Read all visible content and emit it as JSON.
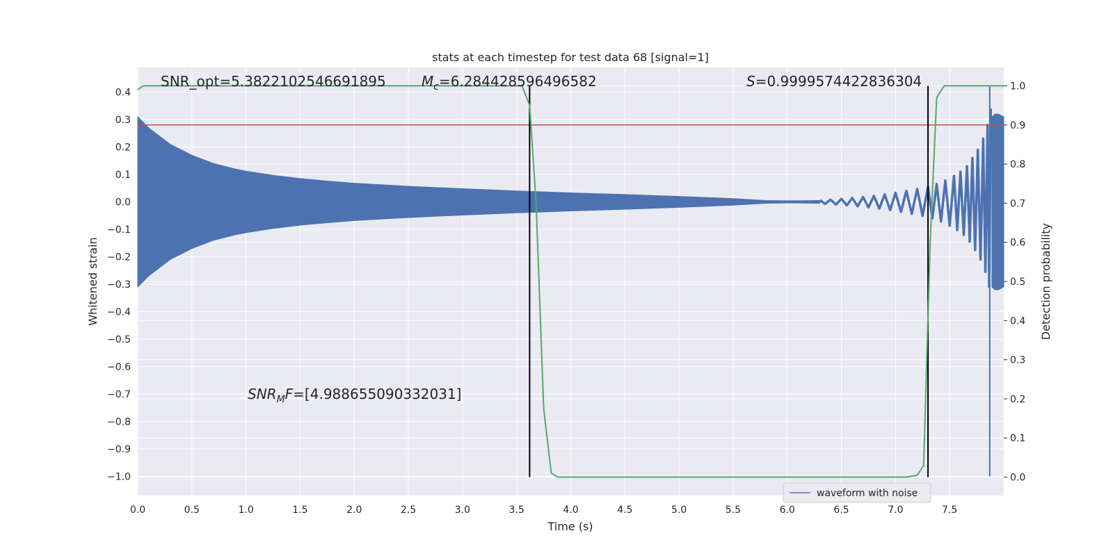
{
  "chart_data": {
    "type": "line",
    "title": "stats at each timestep for test data 68 [signal=1]",
    "xlabel": "Time (s)",
    "ylabel_left": "Whitened strain",
    "ylabel_right": "Detection probability",
    "xlim": [
      0,
      8.0
    ],
    "ylim_left": [
      -1.07,
      0.49
    ],
    "ylim_right": [
      -0.047,
      1.047
    ],
    "x_ticks": [
      "0.0",
      "0.5",
      "1.0",
      "1.5",
      "2.0",
      "2.5",
      "3.0",
      "3.5",
      "4.0",
      "4.5",
      "5.0",
      "5.5",
      "6.0",
      "6.5",
      "7.0",
      "7.5"
    ],
    "y_left_ticks": [
      "0.4",
      "0.3",
      "0.2",
      "0.1",
      "0.0",
      "−0.1",
      "−0.2",
      "−0.3",
      "−0.4",
      "−0.5",
      "−0.6",
      "−0.7",
      "−0.8",
      "−0.9",
      "−1.0"
    ],
    "y_right_ticks": [
      "1.0",
      "0.9",
      "0.8",
      "0.7",
      "0.6",
      "0.5",
      "0.4",
      "0.3",
      "0.2",
      "0.1",
      "0.0"
    ],
    "grid": true,
    "annotations": {
      "snr_opt": "SNR_opt=5.3822102546691895",
      "mc_symbol": "M",
      "mc_sub": "c",
      "mc_value": "=6.284428596496582",
      "s_symbol": "S",
      "s_value": "=0.9999574422836304",
      "snr_mf_symbol": "SNR",
      "snr_mf_sub": "M",
      "snr_mf_mid": "F",
      "snr_mf_value": "=[4.988655090332031]"
    },
    "legend": {
      "placement": "bottom-right",
      "entries": [
        "waveform with noise"
      ]
    },
    "threshold_line": {
      "axis": "right",
      "value": 0.9,
      "color": "#c44e52"
    },
    "vertical_markers": [
      3.62,
      7.3
    ],
    "waveform_envelope": {
      "name": "waveform with noise",
      "color": "#4c72b0",
      "x": [
        0,
        0.1,
        0.2,
        0.3,
        0.4,
        0.5,
        0.6,
        0.7,
        0.8,
        0.9,
        1.0,
        1.25,
        1.5,
        1.75,
        2.0,
        2.5,
        3.0,
        3.5,
        4.0,
        4.5,
        5.0,
        5.5,
        5.8,
        6.0,
        6.3
      ],
      "amplitude": [
        0.31,
        0.27,
        0.24,
        0.21,
        0.19,
        0.17,
        0.155,
        0.14,
        0.13,
        0.12,
        0.112,
        0.097,
        0.085,
        0.076,
        0.068,
        0.057,
        0.048,
        0.04,
        0.033,
        0.027,
        0.02,
        0.012,
        0.005,
        0.004,
        0.005
      ]
    },
    "chirp_peaks": {
      "x": [
        6.3,
        6.4,
        6.5,
        6.6,
        6.7,
        6.8,
        6.9,
        7.0,
        7.1,
        7.2,
        7.3,
        7.38,
        7.46,
        7.54,
        7.6,
        7.66,
        7.71,
        7.76,
        7.81,
        7.85,
        7.88
      ],
      "amplitude": [
        0.006,
        0.008,
        0.011,
        0.014,
        0.018,
        0.022,
        0.027,
        0.033,
        0.04,
        0.047,
        0.055,
        0.065,
        0.078,
        0.095,
        0.11,
        0.13,
        0.16,
        0.19,
        0.23,
        0.28,
        0.34
      ]
    },
    "waveform_tail": {
      "x": [
        7.89,
        7.92,
        7.95,
        8.0
      ],
      "amplitude": [
        0.31,
        0.32,
        0.32,
        0.31
      ]
    },
    "waveform_spike": {
      "x": 7.87,
      "ymax": 0.42,
      "ymin": -1.0
    },
    "detection_probability": {
      "color": "#55a868",
      "x": [
        0,
        0.05,
        3.55,
        3.62,
        3.68,
        3.75,
        3.82,
        3.88,
        3.95,
        7.1,
        7.2,
        7.26,
        7.32,
        7.38,
        7.45,
        8.0
      ],
      "y": [
        0.99,
        1.0,
        1.0,
        0.95,
        0.7,
        0.175,
        0.01,
        0.0,
        0.0,
        0.0,
        0.005,
        0.03,
        0.6,
        0.97,
        1.0,
        1.0
      ]
    }
  }
}
